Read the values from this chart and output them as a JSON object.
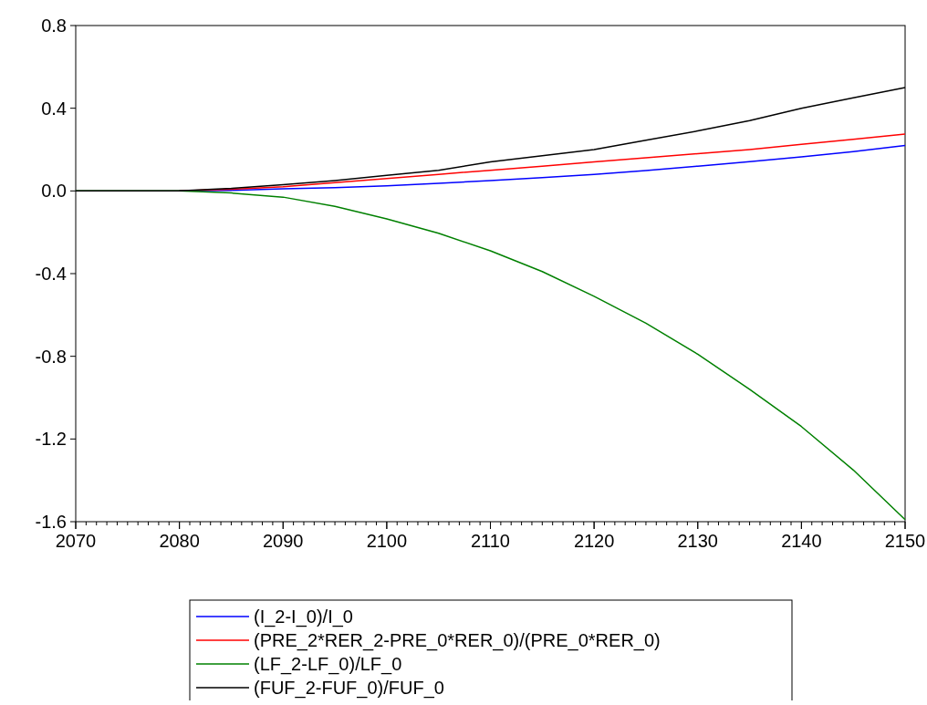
{
  "chart_data": {
    "type": "line",
    "x": [
      2070,
      2075,
      2080,
      2085,
      2090,
      2095,
      2100,
      2105,
      2110,
      2115,
      2120,
      2125,
      2130,
      2135,
      2140,
      2145,
      2150
    ],
    "series": [
      {
        "name": "(I_2-I_0)/I_0",
        "color": "#0000ff",
        "values": [
          null,
          null,
          0,
          0.003,
          0.01,
          0.016,
          0.025,
          0.037,
          0.05,
          0.064,
          0.08,
          0.099,
          0.12,
          0.142,
          0.165,
          0.19,
          0.22
        ]
      },
      {
        "name": "(PRE_2*RER_2-PRE_0*RER_0)/(PRE_0*RER_0)",
        "color": "#ff0000",
        "values": [
          null,
          null,
          0,
          0.008,
          0.02,
          0.04,
          0.06,
          0.08,
          0.1,
          0.12,
          0.14,
          0.16,
          0.18,
          0.2,
          0.225,
          0.25,
          0.275
        ]
      },
      {
        "name": "(LF_2-LF_0)/LF_0",
        "color": "#008000",
        "values": [
          0,
          0,
          0,
          -0.01,
          -0.03,
          -0.075,
          -0.135,
          -0.205,
          -0.29,
          -0.39,
          -0.51,
          -0.64,
          -0.79,
          -0.96,
          -1.14,
          -1.35,
          -1.59
        ]
      },
      {
        "name": "(FUF_2-FUF_0)/FUF_0",
        "color": "#000000",
        "values": [
          0,
          0,
          0,
          0.012,
          0.03,
          0.05,
          0.075,
          0.1,
          0.14,
          0.17,
          0.2,
          0.245,
          0.29,
          0.34,
          0.4,
          0.45,
          0.5
        ]
      }
    ],
    "xlim": [
      2070,
      2150
    ],
    "xticks": [
      2070,
      2080,
      2090,
      2100,
      2110,
      2120,
      2130,
      2140,
      2150
    ],
    "ylim": [
      -1.6,
      0.8
    ],
    "yticks": [
      {
        "value": -1.6,
        "label": "-1.6"
      },
      {
        "value": -1.2,
        "label": "-1.2"
      },
      {
        "value": -0.8,
        "label": "-0.8"
      },
      {
        "value": -0.4,
        "label": "-0.4"
      },
      {
        "value": 0,
        "label": "0.0"
      },
      {
        "value": 0.4,
        "label": "0.4"
      },
      {
        "value": 0.8,
        "label": "0.8"
      }
    ],
    "legend": "bottom",
    "grid": false,
    "marker": "none",
    "line_style": "solid"
  }
}
